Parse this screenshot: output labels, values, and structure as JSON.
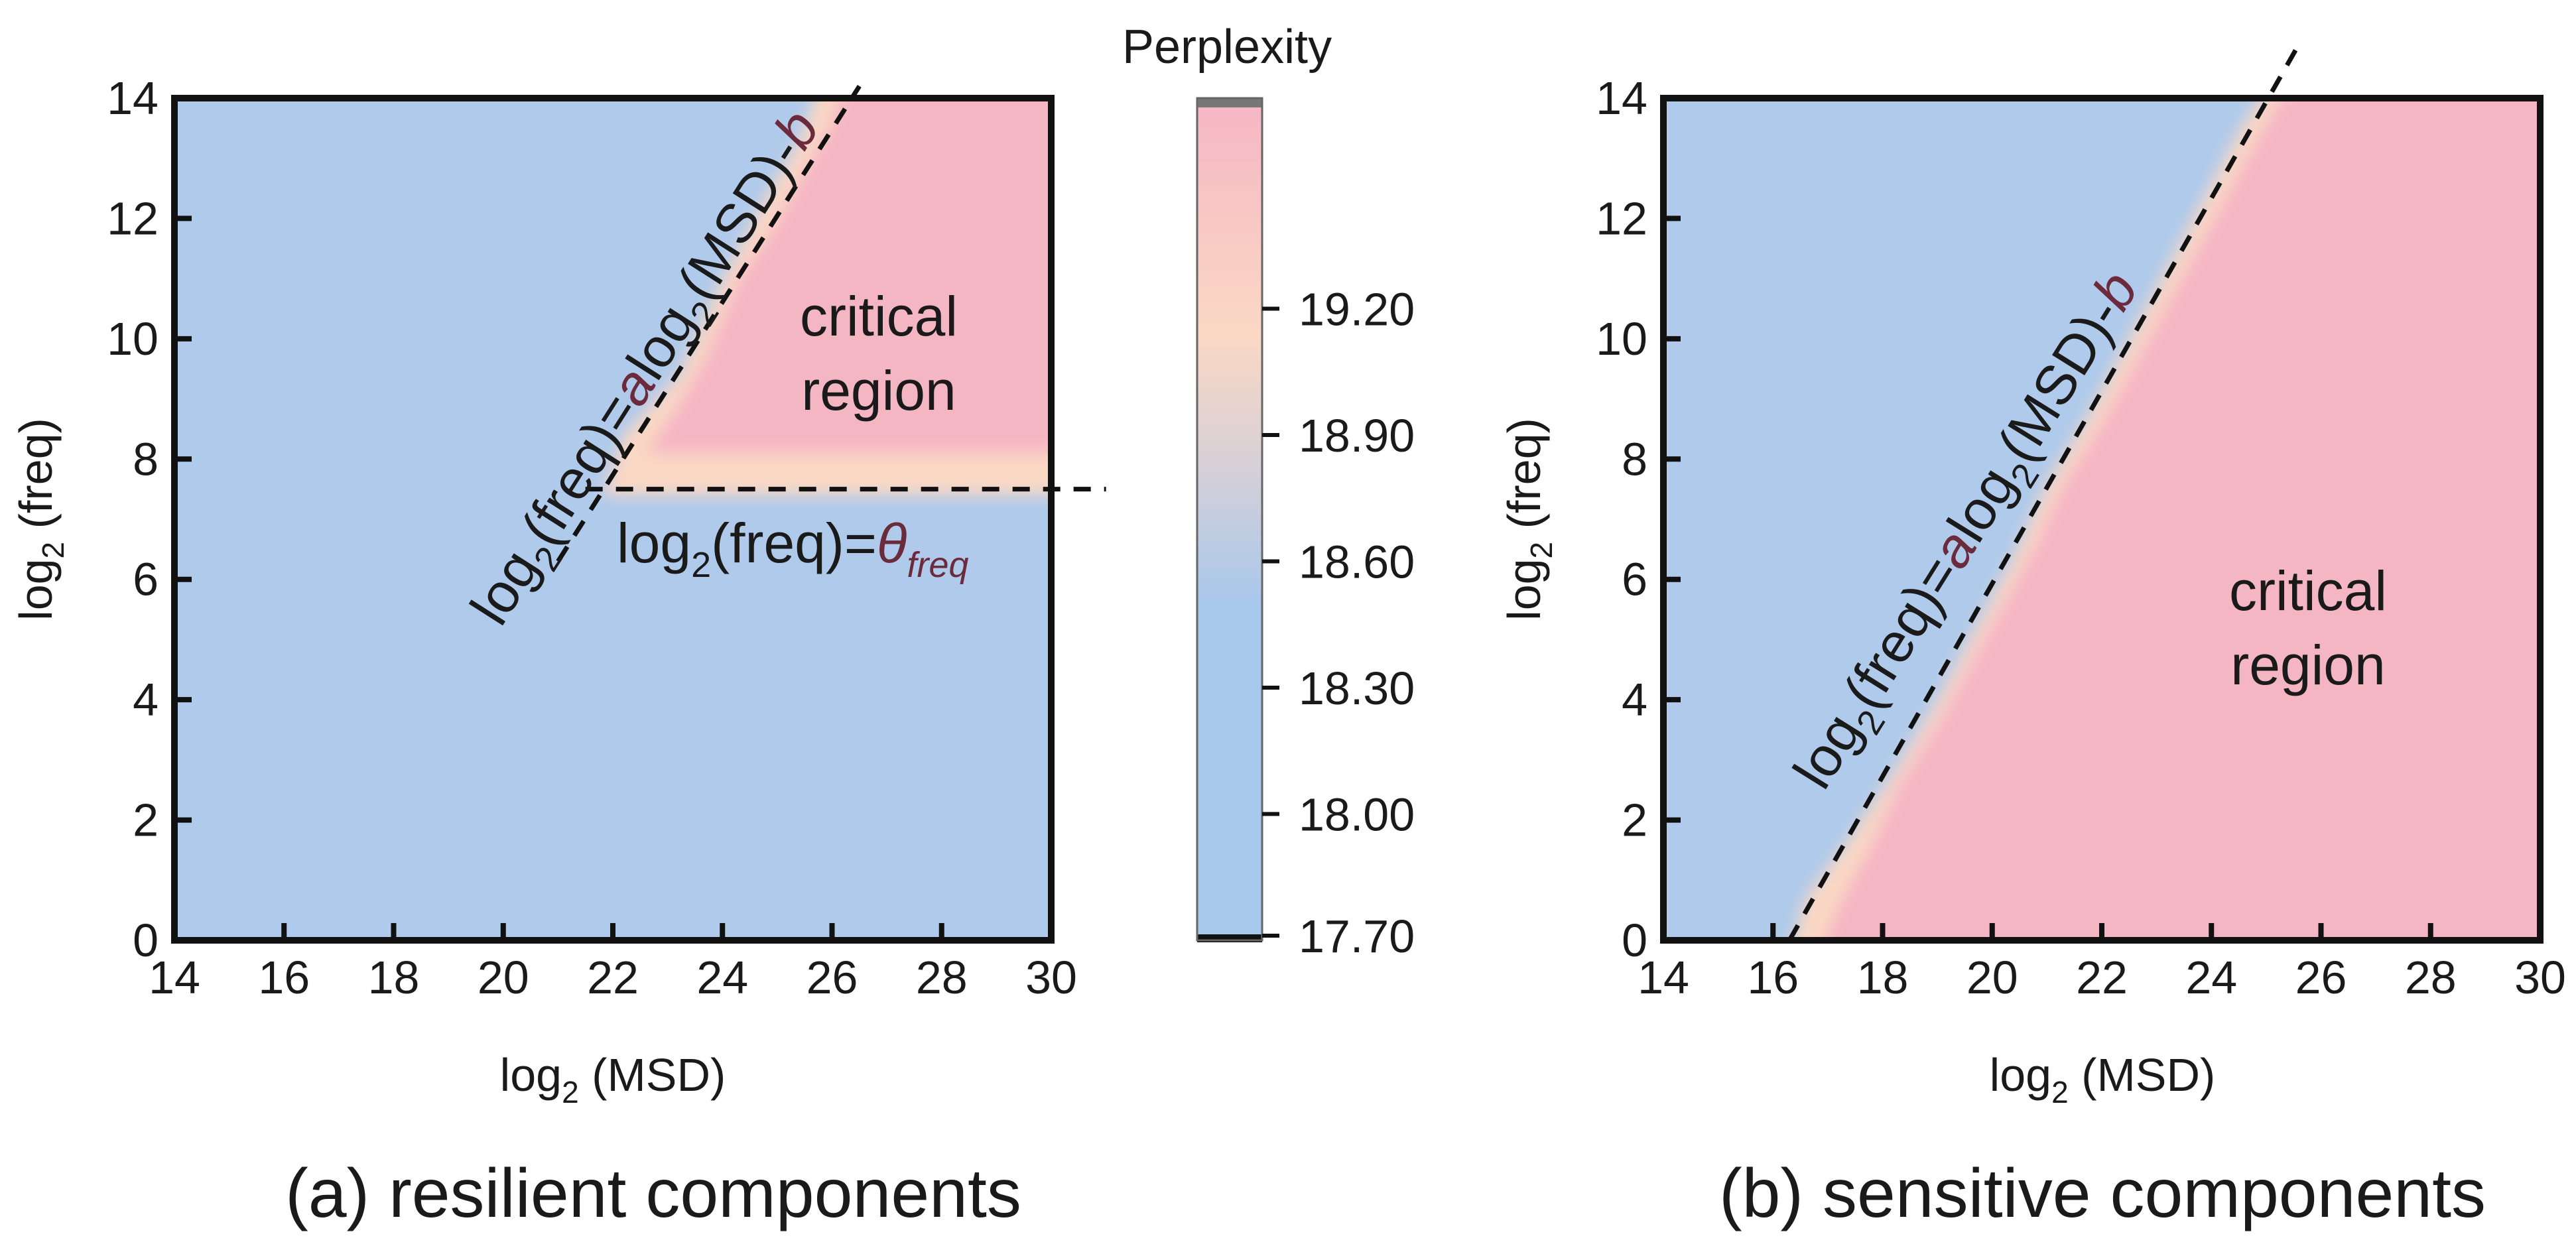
{
  "chart_data": [
    {
      "type": "heatmap",
      "title": "",
      "caption": "(a) resilient components",
      "xlabel": {
        "base": "log",
        "sub": "2",
        "rest": " (MSD)"
      },
      "ylabel": {
        "base": "log",
        "sub": "2",
        "rest": " (freq)"
      },
      "xlim": [
        14,
        30
      ],
      "ylim": [
        0,
        14
      ],
      "xticks": [
        "14",
        "16",
        "18",
        "20",
        "22",
        "24",
        "26",
        "28",
        "30"
      ],
      "yticks": [
        "0",
        "2",
        "4",
        "6",
        "8",
        "10",
        "12",
        "14"
      ],
      "low_value_color": "#afcaeb",
      "high_value_color": "#f5b6c4",
      "critical_region": {
        "label_line1": "critical",
        "label_line2": "region",
        "msd_min": 21.5,
        "freq_min": 7.5
      },
      "boundary_line": {
        "label": {
          "a": "log",
          "b": "2",
          "c": "(freq)=",
          "d": "a",
          "e": "log",
          "f": "2",
          "g": "(MSD)-",
          "h": "b"
        },
        "from": [
          21,
          6.3
        ],
        "to": [
          26.5,
          14.2
        ]
      },
      "threshold_line": {
        "label": {
          "a": "log",
          "b": "2",
          "c": "(freq)=",
          "d": "θ",
          "e": "freq"
        },
        "freq": 7.5,
        "msd_range": [
          21.5,
          31
        ]
      }
    },
    {
      "type": "heatmap",
      "title": "",
      "caption": "(b) sensitive components",
      "xlabel": {
        "base": "log",
        "sub": "2",
        "rest": " (MSD)"
      },
      "ylabel": {
        "base": "log",
        "sub": "2",
        "rest": " (freq)"
      },
      "xlim": [
        14,
        30
      ],
      "ylim": [
        0,
        14
      ],
      "xticks": [
        "14",
        "16",
        "18",
        "20",
        "22",
        "24",
        "26",
        "28",
        "30"
      ],
      "yticks": [
        "0",
        "2",
        "4",
        "6",
        "8",
        "10",
        "12",
        "14"
      ],
      "low_value_color": "#afcaeb",
      "high_value_color": "#f5b6c4",
      "critical_region": {
        "label_line1": "critical",
        "label_line2": "region"
      },
      "boundary_line": {
        "label": {
          "a": "log",
          "b": "2",
          "c": "(freq)=",
          "d": "a",
          "e": "log",
          "f": "2",
          "g": "(MSD)-",
          "h": "b"
        },
        "from": [
          16.3,
          0
        ],
        "to": [
          25.6,
          14.9
        ]
      }
    }
  ],
  "colorbar": {
    "title": "Perplexity",
    "range": [
      17.7,
      19.7
    ],
    "ticks": [
      "17.70",
      "18.00",
      "18.30",
      "18.60",
      "18.90",
      "19.20"
    ],
    "tick_values": [
      17.7,
      18.0,
      18.3,
      18.6,
      18.9,
      19.2
    ],
    "color_low": "#a8c8ec",
    "color_mid": "#d3cfd9",
    "color_peach": "#fbd8c4",
    "color_high": "#f5b6c4",
    "cap_high": "#777777",
    "cap_low": "#111111"
  },
  "colors": {
    "boundary_accent": "#6b2b3c",
    "axis": "#111111"
  }
}
